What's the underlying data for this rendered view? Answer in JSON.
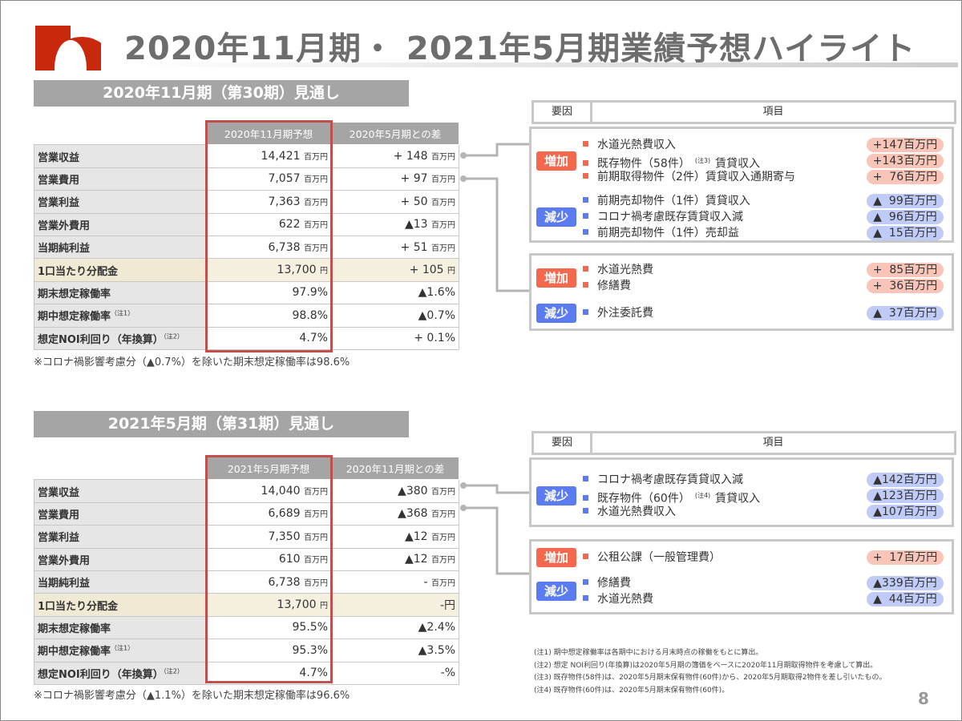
{
  "title": "2020年11月期・ 2021年5月期業績予想ハイライト",
  "page_number": "8",
  "colors": {
    "increase": "#f4694d",
    "decrease": "#5b7cf0",
    "header": "#a5a5a5",
    "highlight_border": "#c0504d"
  },
  "right_headers": {
    "factor": "要因",
    "item": "項目"
  },
  "sections": [
    {
      "title": "2020年11月期（第30期）見通し",
      "columns": [
        "2020年11月期予想",
        "2020年5月期との差"
      ],
      "rows": [
        {
          "label": "営業収益",
          "value": "14,421",
          "unit": "百万円",
          "diff": "+ 148",
          "diff_unit": "百万円"
        },
        {
          "label": "営業費用",
          "value": "7,057",
          "unit": "百万円",
          "diff": "+ 97",
          "diff_unit": "百万円"
        },
        {
          "label": "営業利益",
          "value": "7,363",
          "unit": "百万円",
          "diff": "+ 50",
          "diff_unit": "百万円"
        },
        {
          "label": "営業外費用",
          "value": "622",
          "unit": "百万円",
          "diff": "▲13",
          "diff_unit": "百万円"
        },
        {
          "label": "当期純利益",
          "value": "6,738",
          "unit": "百万円",
          "diff": "+ 51",
          "diff_unit": "百万円"
        },
        {
          "label": "1口当たり分配金",
          "value": "13,700",
          "unit": "円",
          "diff": "+ 105",
          "diff_unit": "円",
          "highlight": true
        },
        {
          "label": "期末想定稼働率",
          "value": "97.9%",
          "unit": "",
          "diff": "▲1.6%",
          "diff_unit": ""
        },
        {
          "label": "期中想定稼働率",
          "note": "（注1）",
          "value": "98.8%",
          "unit": "",
          "diff": "▲0.7%",
          "diff_unit": ""
        },
        {
          "label": "想定NOI利回り（年換算）",
          "note": "（注2）",
          "value": "4.7%",
          "unit": "",
          "diff": "+ 0.1%",
          "diff_unit": ""
        }
      ],
      "footnote": "※コロナ禍影響考慮分（▲0.7%）を除いた期末想定稼働率は98.6%",
      "panels": [
        {
          "groups": [
            {
              "type": "inc",
              "label": "増加",
              "items": [
                {
                  "text": "水道光熱費収入",
                  "value": "+147百万円"
                },
                {
                  "text": "既存物件（58件）",
                  "note": "(注3)",
                  "text2": "賃貸収入",
                  "value": "+143百万円"
                },
                {
                  "text": "前期取得物件（2件）賃貸収入通期寄与",
                  "value": "+  76百万円"
                }
              ]
            },
            {
              "type": "dec",
              "label": "減少",
              "items": [
                {
                  "text": "前期売却物件（1件）賃貸収入",
                  "value": "▲  99百万円"
                },
                {
                  "text": "コロナ禍考慮既存賃貸収入減",
                  "value": "▲  96百万円"
                },
                {
                  "text": "前期売却物件（1件）売却益",
                  "value": "▲  15百万円"
                }
              ]
            }
          ]
        },
        {
          "groups": [
            {
              "type": "inc",
              "label": "増加",
              "items": [
                {
                  "text": "水道光熱費",
                  "value": "+  85百万円"
                },
                {
                  "text": "修繕費",
                  "value": "+  36百万円"
                }
              ]
            },
            {
              "type": "dec",
              "label": "減少",
              "items": [
                {
                  "text": "外注委託費",
                  "value": "▲  37百万円"
                }
              ]
            }
          ]
        }
      ]
    },
    {
      "title": "2021年5月期（第31期）見通し",
      "columns": [
        "2021年5月期予想",
        "2020年11月期との差"
      ],
      "rows": [
        {
          "label": "営業収益",
          "value": "14,040",
          "unit": "百万円",
          "diff": "▲380",
          "diff_unit": "百万円"
        },
        {
          "label": "営業費用",
          "value": "6,689",
          "unit": "百万円",
          "diff": "▲368",
          "diff_unit": "百万円"
        },
        {
          "label": "営業利益",
          "value": "7,350",
          "unit": "百万円",
          "diff": "▲12",
          "diff_unit": "百万円"
        },
        {
          "label": "営業外費用",
          "value": "610",
          "unit": "百万円",
          "diff": "▲12",
          "diff_unit": "百万円"
        },
        {
          "label": "当期純利益",
          "value": "6,738",
          "unit": "百万円",
          "diff": "-",
          "diff_unit": "百万円"
        },
        {
          "label": "1口当たり分配金",
          "value": "13,700",
          "unit": "円",
          "diff": "-円",
          "diff_unit": "",
          "highlight": true
        },
        {
          "label": "期末想定稼働率",
          "value": "95.5%",
          "unit": "",
          "diff": "▲2.4%",
          "diff_unit": ""
        },
        {
          "label": "期中想定稼働率",
          "note": "（注1）",
          "value": "95.3%",
          "unit": "",
          "diff": "▲3.5%",
          "diff_unit": ""
        },
        {
          "label": "想定NOI利回り（年換算）",
          "note": "（注2）",
          "value": "4.7%",
          "unit": "",
          "diff": "-%",
          "diff_unit": ""
        }
      ],
      "footnote": "※コロナ禍影響考慮分（▲1.1%）を除いた期末想定稼働率は96.6%",
      "panels": [
        {
          "groups": [
            {
              "type": "dec",
              "label": "減少",
              "items": [
                {
                  "text": "コロナ禍考慮既存賃貸収入減",
                  "value": "▲142百万円"
                },
                {
                  "text": "既存物件（60件）",
                  "note": "(注4)",
                  "text2": "賃貸収入",
                  "value": "▲123百万円"
                },
                {
                  "text": "水道光熱費収入",
                  "value": "▲107百万円"
                }
              ]
            }
          ]
        },
        {
          "groups": [
            {
              "type": "inc",
              "label": "増加",
              "items": [
                {
                  "text": "公租公課（一般管理費）",
                  "value": "+  17百万円"
                }
              ]
            },
            {
              "type": "dec",
              "label": "減少",
              "items": [
                {
                  "text": "修繕費",
                  "value": "▲339百万円"
                },
                {
                  "text": "水道光熱費",
                  "value": "▲  44百万円"
                }
              ]
            }
          ]
        }
      ]
    }
  ],
  "notes": [
    "(注1) 期中想定稼働率は各期中における月末時点の稼働をもとに算出。",
    "(注2) 想定 NOI利回り(年換算)は2020年5月期の簿価をベースに2020年11月期取得物件を考慮して算出。",
    "(注3) 既存物件(58件)は、2020年5月期末保有物件(60件)から、2020年5月期取得2物件を差し引いたもの。",
    "(注4) 既存物件(60件)は、2020年5月期末保有物件(60件)。"
  ]
}
